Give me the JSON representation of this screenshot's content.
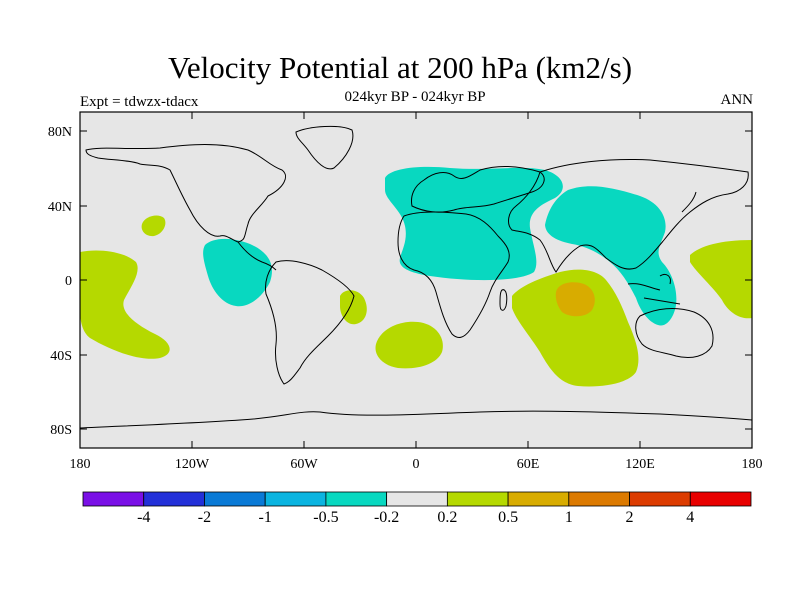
{
  "title": "Velocity Potential at 200 hPa (km2/s)",
  "subtitle": "024kyr BP - 024kyr BP",
  "left_label": "Expt = tdwzx-tdacx",
  "right_label": "ANN",
  "lat_ticks": [
    "80N",
    "40N",
    "0",
    "40S",
    "80S"
  ],
  "lon_ticks": [
    "180",
    "120W",
    "60W",
    "0",
    "60E",
    "120E",
    "180"
  ],
  "colorbar": {
    "colors": [
      "#7a10e6",
      "#2330d8",
      "#0a7ad6",
      "#0bb4e0",
      "#08d8c0",
      "#e6e6e6",
      "#b5d900",
      "#d8ac00",
      "#dc7a00",
      "#dc3c00",
      "#e80000"
    ],
    "labels": [
      "-4",
      "-2",
      "-1",
      "-0.5",
      "-0.2",
      "0.2",
      "0.5",
      "1",
      "2",
      "4"
    ]
  },
  "map_colors": {
    "ocean": "#e6e6e6",
    "positive_weak": "#b5d900",
    "positive_mid": "#d8ac00",
    "negative_weak": "#08d8c0",
    "coast": "#000000"
  }
}
